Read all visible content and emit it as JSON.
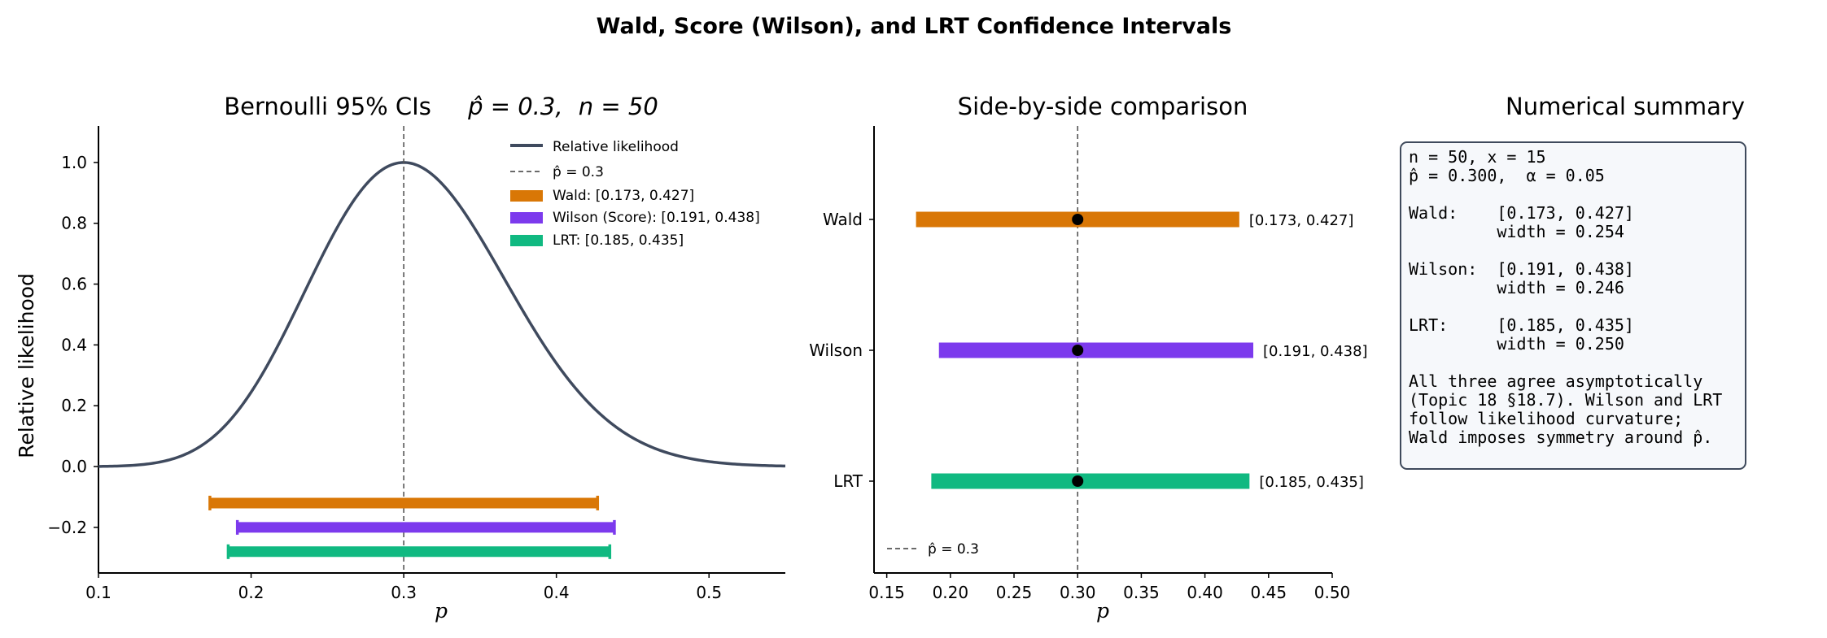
{
  "figure": {
    "suptitle": "Wald, Score (Wilson), and LRT Confidence Intervals",
    "colors": {
      "curve": "#3f4a5e",
      "wald": "#d97706",
      "wilson": "#7c3aed",
      "lrt": "#10b981",
      "phat_line": "#555555",
      "point": "#000000"
    }
  },
  "chart_data": [
    {
      "type": "line",
      "title": "Bernoulli 95% CIs    $\\hat{p} = 0.3$, $n = 50$",
      "title_parts": {
        "prefix": "Bernoulli 95% CIs",
        "phat": "p̂ = 0.3,",
        "n_label": "n = 50"
      },
      "xlabel": "p",
      "ylabel": "Relative likelihood",
      "xlim": [
        0.1,
        0.55
      ],
      "ylim": [
        -0.35,
        1.12
      ],
      "xticks": [
        "0.1",
        "0.2",
        "0.3",
        "0.4",
        "0.5"
      ],
      "yticks": [
        "−0.2",
        "0.0",
        "0.2",
        "0.4",
        "0.6",
        "0.8",
        "1.0"
      ],
      "grid": false,
      "legend_position": "top-right",
      "series": [
        {
          "name": "Relative likelihood",
          "kind": "curve",
          "n": 50,
          "x_successes": 15,
          "phat": 0.3
        }
      ],
      "reference_line": {
        "name": "p̂ = 0.3",
        "x": 0.3
      },
      "intervals": [
        {
          "name": "Wald: [0.173, 0.427]",
          "lo": 0.173,
          "hi": 0.427,
          "y": -0.12,
          "color_key": "wald"
        },
        {
          "name": "Wilson (Score): [0.191, 0.438]",
          "lo": 0.191,
          "hi": 0.438,
          "y": -0.2,
          "color_key": "wilson"
        },
        {
          "name": "LRT: [0.185, 0.435]",
          "lo": 0.185,
          "hi": 0.435,
          "y": -0.28,
          "color_key": "lrt"
        }
      ]
    },
    {
      "type": "bar",
      "title": "Side-by-side comparison",
      "xlabel": "p",
      "xlim": [
        0.14,
        0.5
      ],
      "xticks": [
        "0.15",
        "0.20",
        "0.25",
        "0.30",
        "0.35",
        "0.40",
        "0.45",
        "0.50"
      ],
      "categories": [
        "Wald",
        "Wilson",
        "LRT"
      ],
      "point": 0.3,
      "grid": false,
      "legend_position": "bottom-left",
      "reference_line": {
        "name": "p̂ = 0.3",
        "x": 0.3
      },
      "intervals": [
        {
          "category": "Wald",
          "lo": 0.173,
          "hi": 0.427,
          "label": "[0.173, 0.427]",
          "color_key": "wald"
        },
        {
          "category": "Wilson",
          "lo": 0.191,
          "hi": 0.438,
          "label": "[0.191, 0.438]",
          "color_key": "wilson"
        },
        {
          "category": "LRT",
          "lo": 0.185,
          "hi": 0.435,
          "label": "[0.185, 0.435]",
          "color_key": "lrt"
        }
      ]
    }
  ],
  "summary": {
    "title": "Numerical summary",
    "lines": [
      "n = 50, x = 15",
      "p̂ = 0.300,  α = 0.05",
      "",
      "Wald:    [0.173, 0.427]",
      "         width = 0.254",
      "",
      "Wilson:  [0.191, 0.438]",
      "         width = 0.246",
      "",
      "LRT:     [0.185, 0.435]",
      "         width = 0.250",
      "",
      "All three agree asymptotically",
      "(Topic 18 §18.7). Wilson and LRT",
      "follow likelihood curvature;",
      "Wald imposes symmetry around p̂."
    ]
  }
}
